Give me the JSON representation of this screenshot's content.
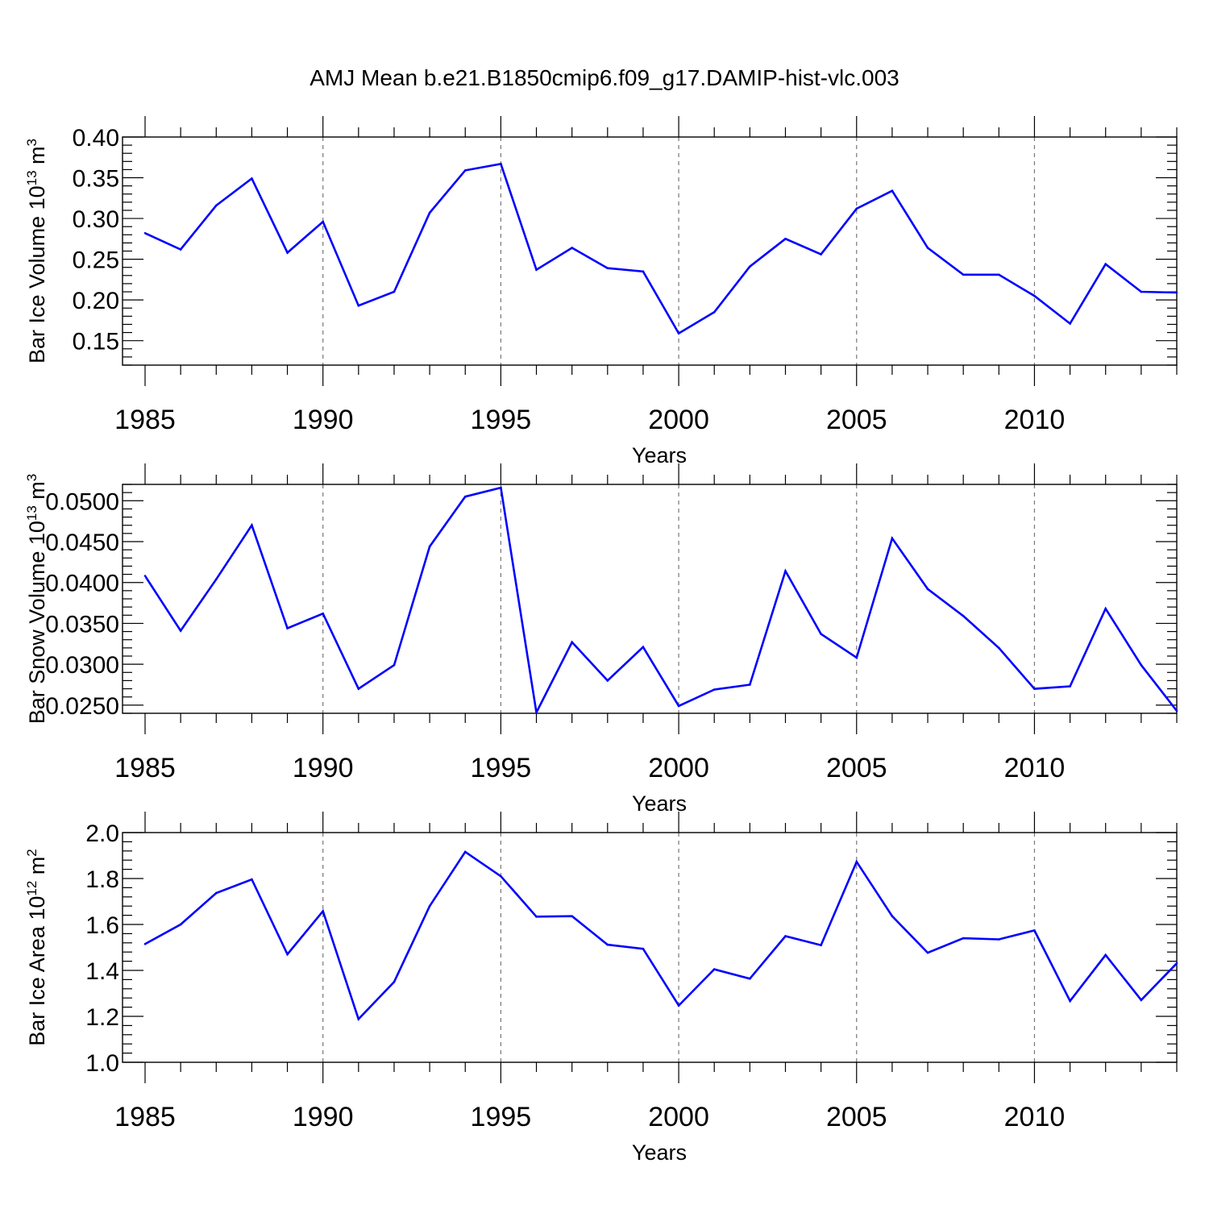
{
  "title": "AMJ Mean b.e21.B1850cmip6.f09_g17.DAMIP-hist-vlc.003",
  "colors": {
    "series": "#0000ff",
    "axis": "#000000",
    "grid": "#777777"
  },
  "chart_data": [
    {
      "type": "line",
      "ylabel": "Bar Ice Volume 10",
      "ylabel_exp": "13",
      "ylabel_unit": " m",
      "ylabel_unit_exp": "3",
      "xlabel": "Years",
      "xlim": [
        1985,
        2014
      ],
      "ylim": [
        0.12,
        0.4
      ],
      "yticks": [
        0.15,
        0.2,
        0.25,
        0.3,
        0.35,
        0.4
      ],
      "ytick_labels": [
        "0.15",
        "0.20",
        "0.25",
        "0.30",
        "0.35",
        "0.40"
      ],
      "xticks": [
        1985,
        1990,
        1995,
        2000,
        2005,
        2010
      ],
      "xtick_labels": [
        "1985",
        "1990",
        "1995",
        "2000",
        "2005",
        "2010"
      ],
      "x": [
        1985,
        1986,
        1987,
        1988,
        1989,
        1990,
        1991,
        1992,
        1993,
        1994,
        1995,
        1996,
        1997,
        1998,
        1999,
        2000,
        2001,
        2002,
        2003,
        2004,
        2005,
        2006,
        2007,
        2008,
        2009,
        2010,
        2011,
        2012,
        2013,
        2014
      ],
      "values": [
        0.282,
        0.262,
        0.316,
        0.349,
        0.258,
        0.296,
        0.193,
        0.21,
        0.307,
        0.359,
        0.367,
        0.237,
        0.264,
        0.239,
        0.235,
        0.159,
        0.185,
        0.241,
        0.275,
        0.256,
        0.312,
        0.334,
        0.264,
        0.231,
        0.231,
        0.205,
        0.171,
        0.244,
        0.21,
        0.209
      ]
    },
    {
      "type": "line",
      "ylabel": "Bar Snow Volume 10",
      "ylabel_exp": "13",
      "ylabel_unit": " m",
      "ylabel_unit_exp": "3",
      "xlabel": "Years",
      "xlim": [
        1985,
        2014
      ],
      "ylim": [
        0.024,
        0.052
      ],
      "yticks": [
        0.025,
        0.03,
        0.035,
        0.04,
        0.045,
        0.05
      ],
      "ytick_labels": [
        "0.0250",
        "0.0300",
        "0.0350",
        "0.0400",
        "0.0450",
        "0.0500"
      ],
      "xticks": [
        1985,
        1990,
        1995,
        2000,
        2005,
        2010
      ],
      "xtick_labels": [
        "1985",
        "1990",
        "1995",
        "2000",
        "2005",
        "2010"
      ],
      "x": [
        1985,
        1986,
        1987,
        1988,
        1989,
        1990,
        1991,
        1992,
        1993,
        1994,
        1995,
        1996,
        1997,
        1998,
        1999,
        2000,
        2001,
        2002,
        2003,
        2004,
        2005,
        2006,
        2007,
        2008,
        2009,
        2010,
        2011,
        2012,
        2013,
        2014
      ],
      "values": [
        0.0408,
        0.0341,
        0.0404,
        0.047,
        0.0344,
        0.0362,
        0.027,
        0.0299,
        0.0444,
        0.0505,
        0.0516,
        0.0241,
        0.0327,
        0.028,
        0.0321,
        0.0249,
        0.0269,
        0.0275,
        0.0414,
        0.0337,
        0.0308,
        0.0454,
        0.0392,
        0.0359,
        0.032,
        0.027,
        0.0273,
        0.0368,
        0.0299,
        0.0243
      ]
    },
    {
      "type": "line",
      "ylabel": "Bar Ice Area 10",
      "ylabel_exp": "12",
      "ylabel_unit": " m",
      "ylabel_unit_exp": "2",
      "xlabel": "Years",
      "xlim": [
        1985,
        2014
      ],
      "ylim": [
        1.0,
        2.0
      ],
      "yticks": [
        1.0,
        1.2,
        1.4,
        1.6,
        1.8,
        2.0
      ],
      "ytick_labels": [
        "1.0",
        "1.2",
        "1.4",
        "1.6",
        "1.8",
        "2.0"
      ],
      "xticks": [
        1985,
        1990,
        1995,
        2000,
        2005,
        2010
      ],
      "xtick_labels": [
        "1985",
        "1990",
        "1995",
        "2000",
        "2005",
        "2010"
      ],
      "x": [
        1985,
        1986,
        1987,
        1988,
        1989,
        1990,
        1991,
        1992,
        1993,
        1994,
        1995,
        1996,
        1997,
        1998,
        1999,
        2000,
        2001,
        2002,
        2003,
        2004,
        2005,
        2006,
        2007,
        2008,
        2009,
        2010,
        2011,
        2012,
        2013,
        2014
      ],
      "values": [
        1.515,
        1.6,
        1.737,
        1.796,
        1.47,
        1.658,
        1.188,
        1.35,
        1.68,
        1.916,
        1.81,
        1.634,
        1.636,
        1.512,
        1.494,
        1.247,
        1.405,
        1.364,
        1.549,
        1.51,
        1.873,
        1.636,
        1.477,
        1.54,
        1.535,
        1.574,
        1.267,
        1.467,
        1.271,
        1.431
      ]
    }
  ]
}
